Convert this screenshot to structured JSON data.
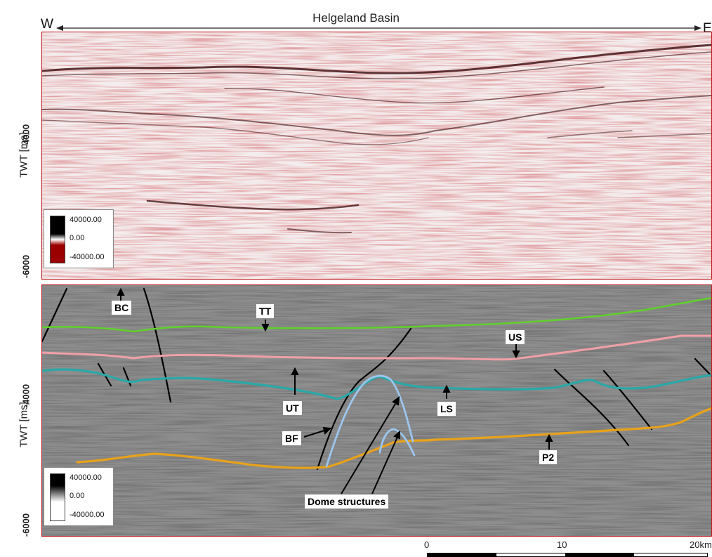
{
  "title": "Helgeland Basin",
  "direction": {
    "west": "W",
    "east": "E"
  },
  "top_panel": {
    "ylabel": "TWT [ms]",
    "ticks": [
      "-4000",
      "-6000"
    ],
    "legend": {
      "high": "40000.00",
      "mid": "0.00",
      "low": "-40000.00",
      "colors": [
        "#000000",
        "#ffffff",
        "#9a0000"
      ]
    }
  },
  "bottom_panel": {
    "ylabel": "TWT [ms]",
    "ticks": [
      "-4000",
      "-6000"
    ],
    "legend": {
      "high": "40000.00",
      "mid": "0.00",
      "low": "-40000.00",
      "colors": [
        "#000000",
        "#ffffff",
        "#ffffff"
      ]
    },
    "labels": {
      "bc": "BC",
      "tt": "TT",
      "us": "US",
      "ut": "UT",
      "ls": "LS",
      "bf": "BF",
      "p2": "P2",
      "dome": "Dome structures"
    },
    "horizon_colors": {
      "tt": "#5fd12b",
      "us": "#f0a0a6",
      "teal": "#2aa8a8",
      "p2": "#e8a21a",
      "dome": "#9cc6ee",
      "fault": "#000000"
    }
  },
  "scale_bar": {
    "ticks": [
      "0",
      "10",
      "20km"
    ]
  }
}
